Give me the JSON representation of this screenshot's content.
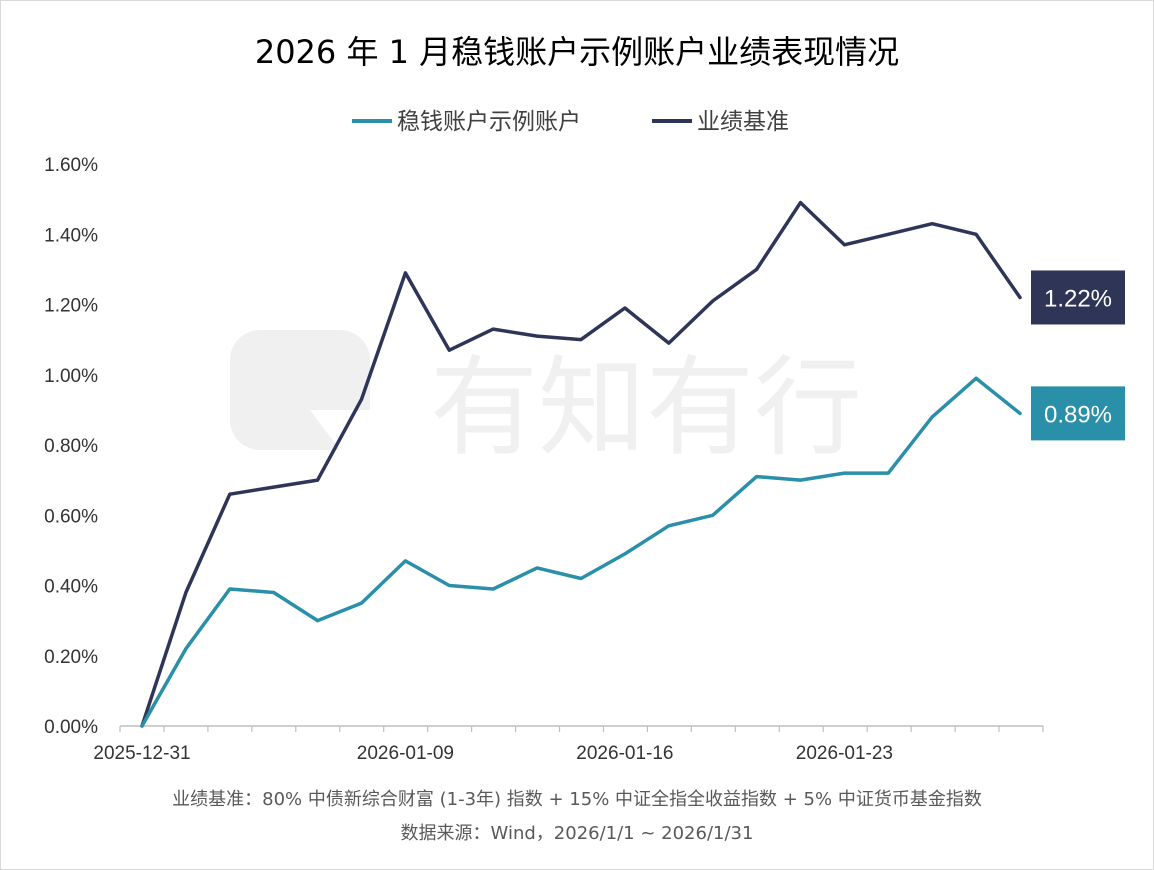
{
  "chart_data": {
    "type": "line",
    "title": "2026 年 1 月稳钱账户示例账户业绩表现情况",
    "xlabel": "",
    "ylabel": "",
    "ylim": [
      0,
      1.6
    ],
    "y_ticks": [
      "0.00%",
      "0.20%",
      "0.40%",
      "0.60%",
      "0.80%",
      "1.00%",
      "1.20%",
      "1.40%",
      "1.60%"
    ],
    "x_tick_labels": [
      "2025-12-31",
      "2026-01-09",
      "2026-01-16",
      "2026-01-23"
    ],
    "x_tick_index": [
      0,
      6,
      11,
      16
    ],
    "legend_position": "top-center",
    "grid": false,
    "series": [
      {
        "name": "稳钱账户示例账户",
        "color": "#2a8fa8",
        "values": [
          0.0,
          0.22,
          0.39,
          0.38,
          0.3,
          0.35,
          0.47,
          0.4,
          0.39,
          0.45,
          0.42,
          0.49,
          0.57,
          0.6,
          0.71,
          0.7,
          0.72,
          0.72,
          0.88,
          0.99,
          0.89
        ],
        "end_label": "0.89%"
      },
      {
        "name": "业绩基准",
        "color": "#2e3557",
        "values": [
          0.0,
          0.38,
          0.66,
          0.68,
          0.7,
          0.93,
          1.29,
          1.07,
          1.13,
          1.11,
          1.1,
          1.19,
          1.09,
          1.21,
          1.3,
          1.49,
          1.37,
          1.4,
          1.43,
          1.4,
          1.22
        ],
        "end_label": "1.22%"
      }
    ]
  },
  "footnotes": {
    "benchmark": "业绩基准：80% 中债新综合财富 (1-3年) 指数 + 15% 中证全指全收益指数 + 5% 中证货币基金指数",
    "source": "数据来源：Wind，2026/1/1 ~ 2026/1/31"
  },
  "watermark": "有知有行"
}
